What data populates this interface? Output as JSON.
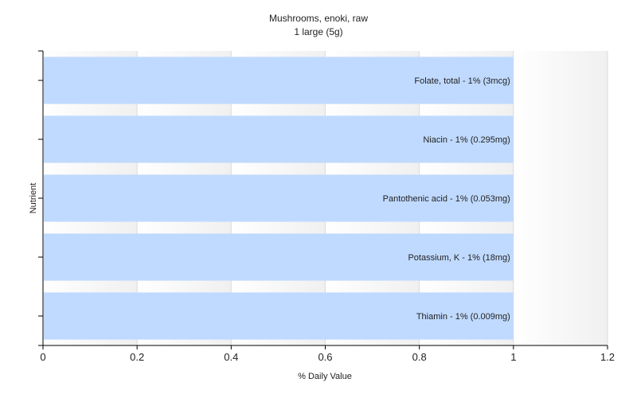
{
  "chart_data": {
    "type": "bar",
    "orientation": "horizontal",
    "title": "Mushrooms, enoki, raw",
    "subtitle": "1 large (5g)",
    "xlabel": "% Daily Value",
    "ylabel": "Nutrient",
    "xlim": [
      0,
      1.2
    ],
    "xticks": [
      "0",
      "0.2",
      "0.4",
      "0.6",
      "0.8",
      "1",
      "1.2"
    ],
    "grid": true,
    "bar_color": "#c0daff",
    "categories": [
      "Folate, total",
      "Niacin",
      "Pantothenic acid",
      "Potassium, K",
      "Thiamin"
    ],
    "values": [
      1,
      1,
      1,
      1,
      1
    ],
    "labels": [
      "Folate, total - 1% (3mcg)",
      "Niacin - 1% (0.295mg)",
      "Pantothenic acid - 1% (0.053mg)",
      "Potassium, K - 1% (18mg)",
      "Thiamin - 1% (0.009mg)"
    ]
  }
}
